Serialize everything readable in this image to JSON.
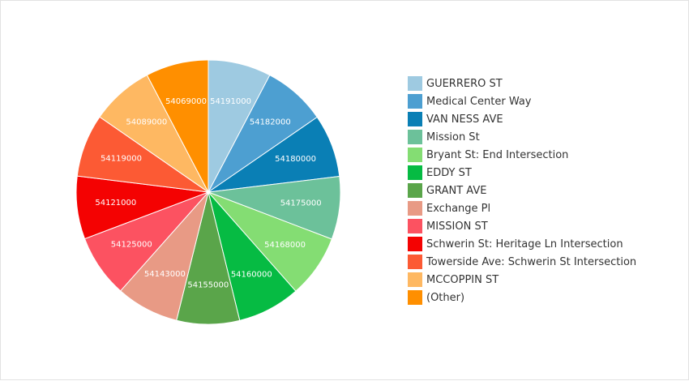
{
  "chart_data": {
    "type": "pie",
    "title": "",
    "legend_position": "right",
    "slices": [
      {
        "label": "GUERRERO ST",
        "value_label": "54191000",
        "color": "#9ecae1"
      },
      {
        "label": "Medical Center Way",
        "value_label": "54182000",
        "color": "#4d9fd1"
      },
      {
        "label": "VAN NESS AVE",
        "value_label": "54180000",
        "color": "#0a7fb5"
      },
      {
        "label": "Mission St",
        "value_label": "54175000",
        "color": "#6cc19a"
      },
      {
        "label": "Bryant St: End Intersection",
        "value_label": "54168000",
        "color": "#84dd73"
      },
      {
        "label": "EDDY ST",
        "value_label": "54160000",
        "color": "#06bb43"
      },
      {
        "label": "GRANT AVE",
        "value_label": "54155000",
        "color": "#5aa54a"
      },
      {
        "label": "Exchange Pl",
        "value_label": "54143000",
        "color": "#e89a85"
      },
      {
        "label": "MISSION ST",
        "value_label": "54125000",
        "color": "#fc5261"
      },
      {
        "label": "Schwerin St: Heritage Ln Intersection",
        "value_label": "54121000",
        "color": "#f40202"
      },
      {
        "label": "Towerside Ave: Schwerin St Intersection",
        "value_label": "54119000",
        "color": "#fc5a34"
      },
      {
        "label": "MCCOPPIN ST",
        "value_label": "54089000",
        "color": "#feb862"
      },
      {
        "label": "(Other)",
        "value_label": "54069000",
        "color": "#ff8f00"
      }
    ]
  }
}
